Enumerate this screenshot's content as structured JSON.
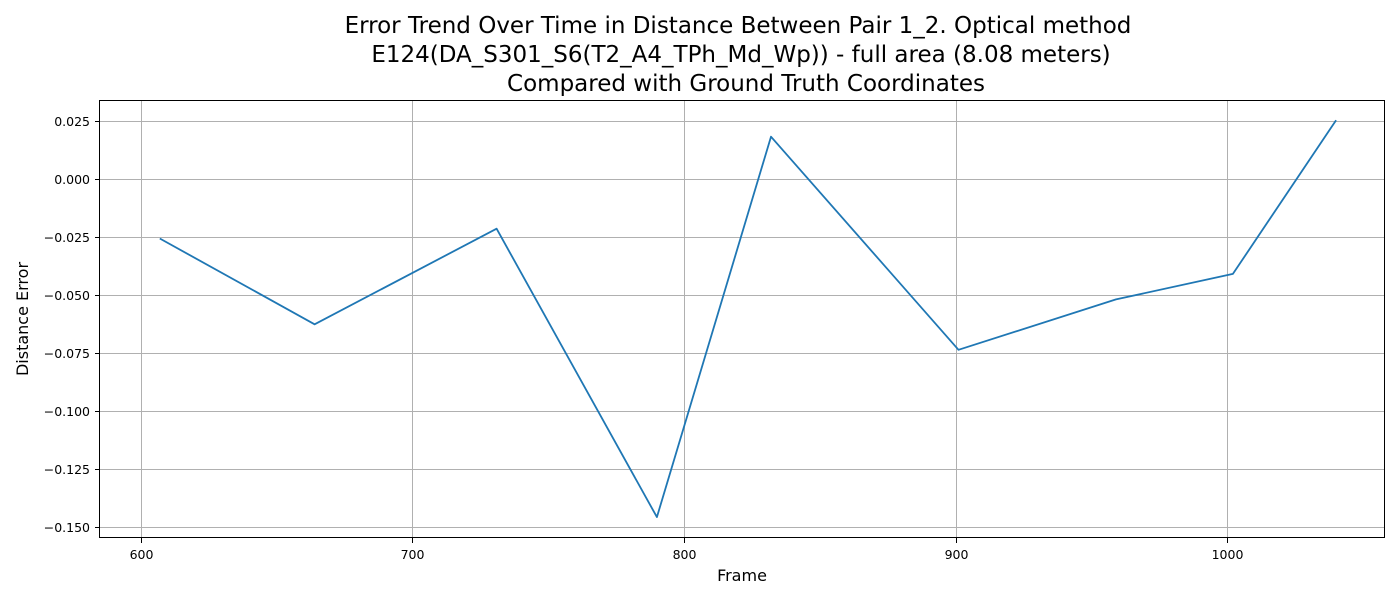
{
  "chart_data": {
    "type": "line",
    "title_lines": [
      "Error Trend Over Time in Distance Between Pair 1_2. Optical method",
      "E124(DA_S301_S6(T2_A4_TPh_Md_Wp)) - full area (8.08 meters)",
      "Compared with Ground Truth Coordinates"
    ],
    "xlabel": "Frame",
    "ylabel": "Distance Error",
    "xlim": [
      585,
      1058
    ],
    "ylim": [
      -0.1547,
      0.0338
    ],
    "x_ticks": [
      600,
      700,
      800,
      900,
      1000
    ],
    "y_ticks": [
      0.025,
      0.0,
      -0.025,
      -0.05,
      -0.075,
      -0.1,
      -0.125,
      -0.15
    ],
    "y_tick_labels": [
      "0.025",
      "0.000",
      "−0.025",
      "−0.050",
      "−0.075",
      "−0.100",
      "−0.125",
      "−0.150"
    ],
    "grid": true,
    "color": "#1f77b4",
    "series": [
      {
        "x": [
          607,
          664,
          731,
          790,
          832,
          901,
          959,
          1002,
          1040
        ],
        "y": [
          -0.0255,
          -0.0625,
          -0.0213,
          -0.1457,
          0.0184,
          -0.0735,
          -0.0518,
          -0.0408,
          0.0255
        ]
      }
    ]
  }
}
